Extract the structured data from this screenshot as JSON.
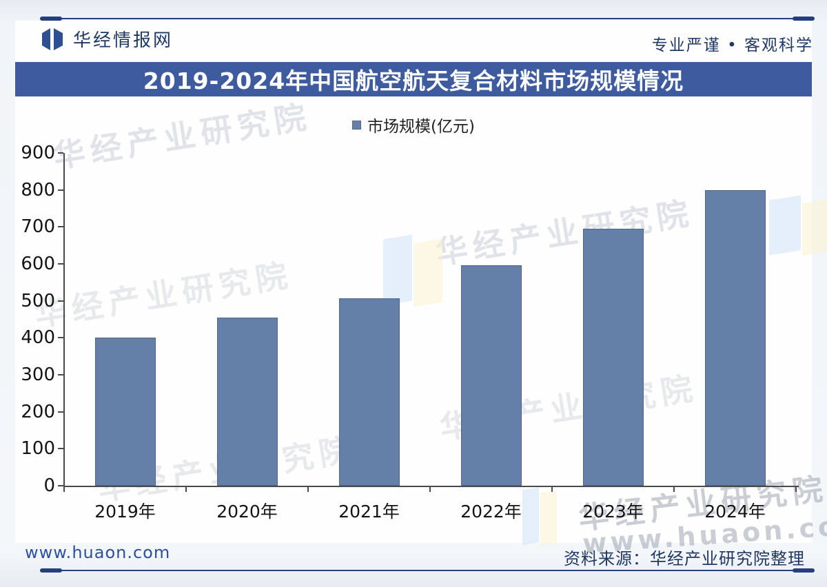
{
  "header": {
    "brand": "华经情报网",
    "tagline": "专业严谨 • 客观科学"
  },
  "title": "2019-2024年中国航空航天复合材料市场规模情况",
  "chart_data": {
    "type": "bar",
    "title": "2019-2024年中国航空航天复合材料市场规模情况",
    "legend": "市场规模(亿元)",
    "legend_position": "top-center",
    "categories": [
      "2019年",
      "2020年",
      "2021年",
      "2022年",
      "2023年",
      "2024年"
    ],
    "values": [
      400,
      455,
      507,
      597,
      695,
      800
    ],
    "xlabel": "",
    "ylabel": "",
    "ylim": [
      0,
      900
    ],
    "ytick_step": 100,
    "grid": false,
    "bar_color": "#6580A8"
  },
  "footer": {
    "website": "www.huaon.com",
    "source": "资料来源：华经产业研究院整理"
  },
  "watermark": {
    "brand": "华经产业研究院",
    "url": "www.huaon.com"
  },
  "colors": {
    "banner_bg": "#3D5B9E",
    "bar": "#6580A8",
    "navy_text": "#1F3864",
    "link_blue": "#2D4FA1",
    "axis": "#4A4A4A"
  }
}
